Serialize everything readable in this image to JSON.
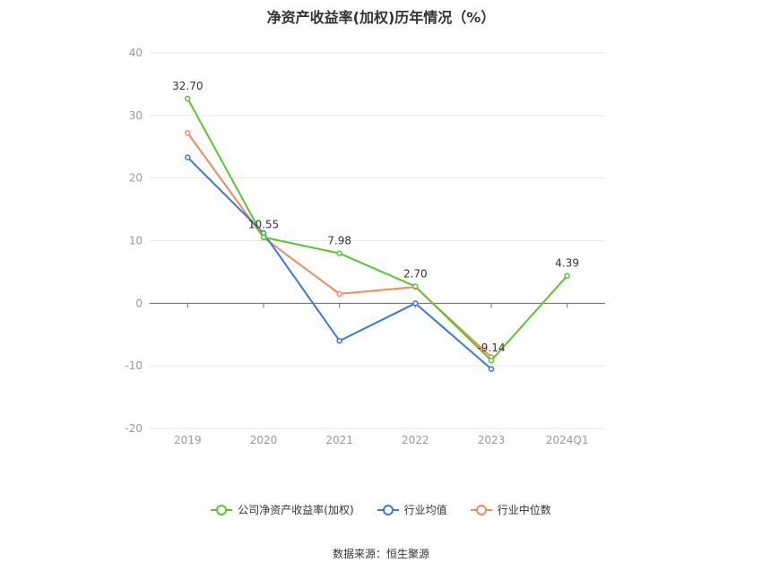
{
  "chart_data": {
    "type": "line",
    "title": "净资产收益率(加权)历年情况（%）",
    "categories": [
      "2019",
      "2020",
      "2021",
      "2022",
      "2023",
      "2024Q1"
    ],
    "ylim": [
      -20,
      40
    ],
    "yticks": [
      40,
      30,
      20,
      10,
      0,
      -10,
      -20
    ],
    "grid": true,
    "legend_position": "bottom",
    "series": [
      {
        "name": "公司净资产收益率(加权)",
        "color": "#5cc52f",
        "values": [
          32.7,
          10.55,
          7.98,
          2.7,
          -9.14,
          4.39
        ],
        "labels": [
          "32.70",
          "10.55",
          "7.98",
          "2.70",
          "-9.14",
          "4.39"
        ]
      },
      {
        "name": "行业均值",
        "color": "#3b78e0",
        "values": [
          23.3,
          11.2,
          -6.0,
          0.0,
          -10.5,
          null
        ]
      },
      {
        "name": "行业中位数",
        "color": "#f08a5d",
        "values": [
          27.2,
          10.5,
          1.5,
          2.6,
          -8.6,
          null
        ]
      }
    ]
  },
  "source": "数据来源：恒生聚源"
}
